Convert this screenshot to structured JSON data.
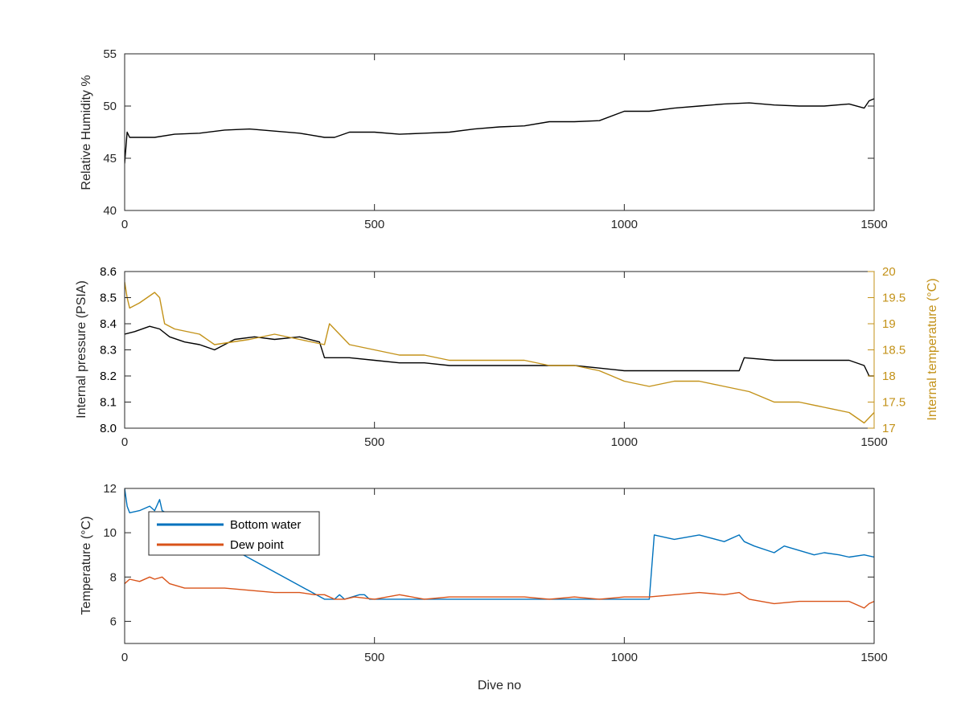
{
  "chart_data": [
    {
      "type": "line",
      "panel": "top",
      "xlabel": "",
      "ylabel": "Relative Humidity %",
      "xlim": [
        0,
        1500
      ],
      "ylim": [
        40,
        55
      ],
      "xticks": [
        0,
        500,
        1000,
        1500
      ],
      "yticks": [
        40,
        45,
        50,
        55
      ],
      "series": [
        {
          "color": "#000000",
          "x": [
            0,
            5,
            10,
            30,
            60,
            100,
            150,
            200,
            250,
            300,
            350,
            400,
            420,
            450,
            500,
            550,
            600,
            650,
            700,
            750,
            800,
            850,
            900,
            950,
            1000,
            1050,
            1100,
            1150,
            1200,
            1250,
            1300,
            1350,
            1400,
            1450,
            1480,
            1490,
            1500
          ],
          "y": [
            44.5,
            47.5,
            47.0,
            47.0,
            47.0,
            47.3,
            47.4,
            47.7,
            47.8,
            47.6,
            47.4,
            47.0,
            47.0,
            47.5,
            47.5,
            47.3,
            47.4,
            47.5,
            47.8,
            48.0,
            48.1,
            48.5,
            48.5,
            48.6,
            49.5,
            49.5,
            49.8,
            50.0,
            50.2,
            50.3,
            50.1,
            50.0,
            50.0,
            50.2,
            49.8,
            50.5,
            50.7
          ]
        }
      ]
    },
    {
      "type": "line",
      "panel": "middle",
      "xlabel": "",
      "ylabel": "Internal pressure (PSIA)",
      "y2label": "Internal temperature (°C)",
      "xlim": [
        0,
        1500
      ],
      "ylim": [
        8.0,
        8.6
      ],
      "y2lim": [
        17,
        20
      ],
      "xticks": [
        0,
        500,
        1000,
        1500
      ],
      "yticks": [
        8.0,
        8.1,
        8.2,
        8.3,
        8.4,
        8.5,
        8.6
      ],
      "y2ticks": [
        17,
        17.5,
        18,
        18.5,
        19,
        19.5,
        20
      ],
      "series": [
        {
          "axis": "left",
          "color": "#000000",
          "x": [
            0,
            20,
            50,
            70,
            90,
            120,
            150,
            180,
            220,
            260,
            300,
            350,
            390,
            400,
            450,
            500,
            550,
            600,
            650,
            700,
            750,
            800,
            850,
            900,
            950,
            1000,
            1050,
            1100,
            1150,
            1200,
            1230,
            1240,
            1300,
            1350,
            1400,
            1450,
            1480,
            1490,
            1500
          ],
          "y": [
            8.36,
            8.37,
            8.39,
            8.38,
            8.35,
            8.33,
            8.32,
            8.3,
            8.34,
            8.35,
            8.34,
            8.35,
            8.33,
            8.27,
            8.27,
            8.26,
            8.25,
            8.25,
            8.24,
            8.24,
            8.24,
            8.24,
            8.24,
            8.24,
            8.23,
            8.22,
            8.22,
            8.22,
            8.22,
            8.22,
            8.22,
            8.27,
            8.26,
            8.26,
            8.26,
            8.26,
            8.24,
            8.2,
            8.2
          ]
        },
        {
          "axis": "right",
          "color": "#c39219",
          "x": [
            0,
            5,
            10,
            30,
            60,
            70,
            80,
            100,
            150,
            180,
            250,
            300,
            350,
            400,
            410,
            450,
            500,
            550,
            600,
            650,
            700,
            750,
            800,
            850,
            900,
            950,
            1000,
            1050,
            1100,
            1150,
            1200,
            1250,
            1300,
            1350,
            1400,
            1450,
            1480,
            1490,
            1500
          ],
          "y": [
            19.8,
            19.5,
            19.3,
            19.4,
            19.6,
            19.5,
            19.0,
            18.9,
            18.8,
            18.6,
            18.7,
            18.8,
            18.7,
            18.6,
            19.0,
            18.6,
            18.5,
            18.4,
            18.4,
            18.3,
            18.3,
            18.3,
            18.3,
            18.2,
            18.2,
            18.1,
            17.9,
            17.8,
            17.9,
            17.9,
            17.8,
            17.7,
            17.5,
            17.5,
            17.4,
            17.3,
            17.1,
            17.2,
            17.3
          ]
        }
      ]
    },
    {
      "type": "line",
      "panel": "bottom",
      "xlabel": "Dive no",
      "ylabel": "Temperature (°C)",
      "xlim": [
        0,
        1500
      ],
      "ylim": [
        5,
        12
      ],
      "xticks": [
        0,
        500,
        1000,
        1500
      ],
      "yticks": [
        6,
        8,
        10,
        12
      ],
      "legend_position": "top-left",
      "series": [
        {
          "name": "Bottom water",
          "color": "#0072bd",
          "x": [
            0,
            5,
            10,
            30,
            50,
            60,
            70,
            75,
            400,
            405,
            420,
            430,
            440,
            470,
            480,
            490,
            500,
            530,
            540,
            560,
            580,
            600,
            630,
            640,
            660,
            680,
            700,
            720,
            730,
            740,
            760,
            780,
            800,
            820,
            830,
            850,
            870,
            890,
            900,
            920,
            940,
            960,
            980,
            1000,
            1020,
            1050,
            1060,
            1100,
            1150,
            1200,
            1230,
            1240,
            1260,
            1300,
            1320,
            1350,
            1380,
            1400,
            1430,
            1450,
            1480,
            1500
          ],
          "y": [
            12.0,
            11.2,
            10.9,
            11.0,
            11.2,
            11.0,
            11.5,
            11.0,
            7.0,
            7.0,
            7.0,
            7.2,
            7.0,
            7.2,
            7.2,
            7.0,
            7.0,
            7.0,
            7.0,
            7.0,
            7.0,
            7.0,
            7.0,
            7.0,
            7.0,
            7.0,
            7.0,
            7.0,
            7.0,
            7.0,
            7.0,
            7.0,
            7.0,
            7.0,
            7.0,
            7.0,
            7.0,
            7.0,
            7.0,
            7.0,
            7.0,
            7.0,
            7.0,
            7.0,
            7.0,
            7.0,
            9.9,
            9.7,
            9.9,
            9.6,
            9.9,
            9.6,
            9.4,
            9.1,
            9.4,
            9.2,
            9.0,
            9.1,
            9.0,
            8.9,
            9.0,
            8.9
          ]
        },
        {
          "name": "Dew point",
          "color": "#d95319",
          "x": [
            0,
            10,
            30,
            50,
            60,
            75,
            90,
            120,
            150,
            200,
            250,
            300,
            350,
            380,
            400,
            420,
            440,
            460,
            500,
            550,
            600,
            650,
            700,
            750,
            800,
            850,
            900,
            950,
            1000,
            1050,
            1100,
            1150,
            1200,
            1230,
            1250,
            1300,
            1350,
            1400,
            1450,
            1480,
            1490,
            1500
          ],
          "y": [
            7.7,
            7.9,
            7.8,
            8.0,
            7.9,
            8.0,
            7.7,
            7.5,
            7.5,
            7.5,
            7.4,
            7.3,
            7.3,
            7.2,
            7.2,
            7.0,
            7.0,
            7.1,
            7.0,
            7.2,
            7.0,
            7.1,
            7.1,
            7.1,
            7.1,
            7.0,
            7.1,
            7.0,
            7.1,
            7.1,
            7.2,
            7.3,
            7.2,
            7.3,
            7.0,
            6.8,
            6.9,
            6.9,
            6.9,
            6.6,
            6.8,
            6.9
          ]
        }
      ]
    }
  ]
}
